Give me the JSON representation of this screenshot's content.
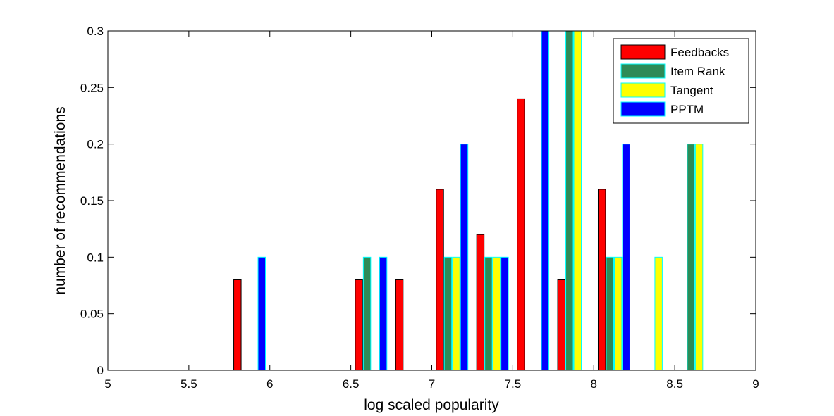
{
  "chart_data": {
    "type": "bar",
    "title": "",
    "xlabel": "log scaled popularity",
    "ylabel": "number of recommendations",
    "xlim": [
      5,
      9
    ],
    "ylim": [
      0,
      0.3
    ],
    "xticks": [
      {
        "value": 5,
        "label": "5"
      },
      {
        "value": 5.5,
        "label": "5.5"
      },
      {
        "value": 6,
        "label": "6"
      },
      {
        "value": 6.5,
        "label": "6.5"
      },
      {
        "value": 7,
        "label": "7"
      },
      {
        "value": 7.5,
        "label": "7.5"
      },
      {
        "value": 8,
        "label": "8"
      },
      {
        "value": 8.5,
        "label": "8.5"
      },
      {
        "value": 9,
        "label": "9"
      }
    ],
    "yticks": [
      {
        "value": 0,
        "label": "0"
      },
      {
        "value": 0.05,
        "label": "0.05"
      },
      {
        "value": 0.1,
        "label": "0.1"
      },
      {
        "value": 0.15,
        "label": "0.15"
      },
      {
        "value": 0.2,
        "label": "0.2"
      },
      {
        "value": 0.25,
        "label": "0.25"
      },
      {
        "value": 0.3,
        "label": "0.3"
      }
    ],
    "grid": false,
    "legend_position": "top-right",
    "x": [
      5.125,
      5.375,
      5.625,
      5.875,
      6.125,
      6.375,
      6.625,
      6.875,
      7.125,
      7.375,
      7.625,
      7.875,
      8.125,
      8.375,
      8.625,
      8.875
    ],
    "series": [
      {
        "name": "Feedbacks",
        "color": "#ff0000",
        "edge": "#000000",
        "values": [
          0,
          0,
          0,
          0.08,
          0,
          0,
          0.08,
          0.08,
          0.16,
          0.12,
          0.24,
          0.08,
          0.16,
          0,
          0,
          0
        ]
      },
      {
        "name": "Item Rank",
        "color": "#2e8b57",
        "edge": "#00ffff",
        "values": [
          0,
          0,
          0,
          0,
          0,
          0,
          0.1,
          0,
          0.1,
          0.1,
          0,
          0.3,
          0.1,
          0,
          0.2,
          0
        ]
      },
      {
        "name": "Tangent",
        "color": "#ffff00",
        "edge": "#00ffff",
        "values": [
          0,
          0,
          0,
          0,
          0,
          0,
          0,
          0,
          0.1,
          0.1,
          0,
          0.3,
          0.1,
          0.1,
          0.2,
          0
        ]
      },
      {
        "name": "PPTM",
        "color": "#0000ff",
        "edge": "#00ffff",
        "values": [
          0,
          0,
          0,
          0.1,
          0,
          0,
          0.1,
          0,
          0.2,
          0.1,
          0.3,
          0,
          0.2,
          0,
          0,
          0
        ]
      }
    ]
  }
}
